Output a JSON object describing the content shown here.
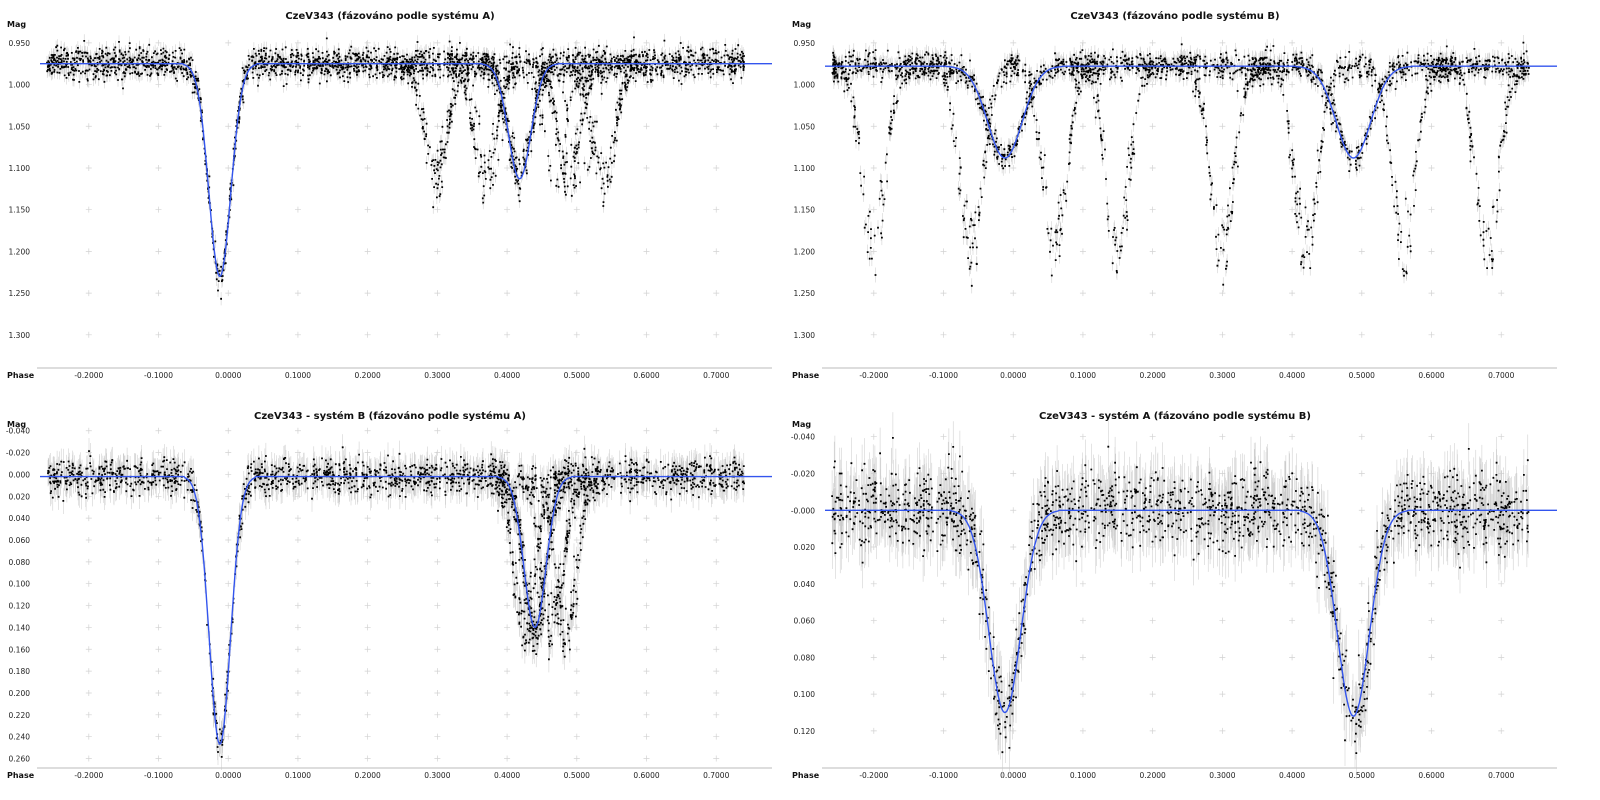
{
  "chart_data": [
    {
      "type": "scatter",
      "title": "CzeV343 (fázováno podle systému A)",
      "ylabel": "Mag",
      "xlabel": "Phase",
      "xlim": [
        -0.27,
        0.78
      ],
      "ylim": [
        1.335,
        0.925
      ],
      "y_reversed": true,
      "grid": "plus-markers",
      "x_ticks": [
        "-0.2000",
        "-0.1000",
        "0.0000",
        "0.1000",
        "0.2000",
        "0.3000",
        "0.4000",
        "0.5000",
        "0.6000",
        "0.7000"
      ],
      "x_tick_values": [
        -0.2,
        -0.1,
        0.0,
        0.1,
        0.2,
        0.3,
        0.4,
        0.5,
        0.6,
        0.7
      ],
      "y_ticks": [
        "0.950",
        "1.000",
        "1.050",
        "1.100",
        "1.150",
        "1.200",
        "1.250",
        "1.300"
      ],
      "y_tick_values": [
        0.95,
        1.0,
        1.05,
        1.1,
        1.15,
        1.2,
        1.25,
        1.3
      ],
      "data_x_range": [
        -0.26,
        0.74
      ],
      "model": {
        "color": "#3355ee",
        "x_range": [
          -0.27,
          0.78
        ],
        "base": 0.975,
        "dips": [
          {
            "center": -0.012,
            "depth": 0.255,
            "width": 0.033
          },
          {
            "center": 0.418,
            "depth": 0.138,
            "width": 0.034
          }
        ]
      },
      "observations": {
        "points_per_track": 260,
        "tracks": [
          {
            "offset": 0.0,
            "weight": 5
          },
          {
            "offset": 0.05,
            "weight": 2
          },
          {
            "offset": -0.04,
            "weight": 1
          },
          {
            "offset": 0.09,
            "weight": 1
          }
        ],
        "secondary_offsets": [
          0.0,
          0.07,
          -0.05,
          0.12,
          -0.12
        ],
        "noise": 0.009,
        "error_bar": 0.008
      }
    },
    {
      "type": "scatter",
      "title": "CzeV343 (fázováno podle systému B)",
      "ylabel": "Mag",
      "xlabel": "Phase",
      "xlim": [
        -0.27,
        0.78
      ],
      "ylim": [
        1.335,
        0.925
      ],
      "y_reversed": true,
      "grid": "plus-markers",
      "x_ticks": [
        "-0.2000",
        "-0.1000",
        "0.0000",
        "0.1000",
        "0.2000",
        "0.3000",
        "0.4000",
        "0.5000",
        "0.6000",
        "0.7000"
      ],
      "x_tick_values": [
        -0.2,
        -0.1,
        0.0,
        0.1,
        0.2,
        0.3,
        0.4,
        0.5,
        0.6,
        0.7
      ],
      "y_ticks": [
        "0.950",
        "1.000",
        "1.050",
        "1.100",
        "1.150",
        "1.200",
        "1.250",
        "1.300"
      ],
      "y_tick_values": [
        0.95,
        1.0,
        1.05,
        1.1,
        1.15,
        1.2,
        1.25,
        1.3
      ],
      "data_x_range": [
        -0.26,
        0.74
      ],
      "model": {
        "color": "#3355ee",
        "x_range": [
          -0.27,
          0.78
        ],
        "base": 0.978,
        "dips": [
          {
            "center": -0.012,
            "depth": 0.11,
            "width": 0.052
          },
          {
            "center": 0.488,
            "depth": 0.11,
            "width": 0.052
          }
        ]
      },
      "observations": {
        "points_per_track": 240,
        "tracks": [
          {
            "offset": 0.0,
            "weight": 6
          }
        ],
        "scatter_dips": [
          -0.2,
          -0.06,
          0.06,
          0.15,
          0.3,
          0.42,
          0.56,
          0.68
        ],
        "scatter_depth": 0.25,
        "noise": 0.008,
        "error_bar": 0.009
      }
    },
    {
      "type": "scatter",
      "title": "CzeV343 - systém B (fázováno podle systému A)",
      "ylabel": "Mag",
      "xlabel": "Phase",
      "xlim": [
        -0.27,
        0.78
      ],
      "ylim": [
        0.265,
        -0.048
      ],
      "y_reversed": true,
      "grid": "plus-markers",
      "x_ticks": [
        "-0.2000",
        "-0.1000",
        "0.0000",
        "0.1000",
        "0.2000",
        "0.3000",
        "0.4000",
        "0.5000",
        "0.6000",
        "0.7000"
      ],
      "x_tick_values": [
        -0.2,
        -0.1,
        0.0,
        0.1,
        0.2,
        0.3,
        0.4,
        0.5,
        0.6,
        0.7
      ],
      "y_ticks": [
        "-0.040",
        "-0.020",
        "0.000",
        "0.020",
        "0.040",
        "0.060",
        "0.080",
        "0.100",
        "0.120",
        "0.140",
        "0.160",
        "0.180",
        "0.200",
        "0.220",
        "0.240",
        "0.260"
      ],
      "y_tick_values": [
        -0.04,
        -0.02,
        0.0,
        0.02,
        0.04,
        0.06,
        0.08,
        0.1,
        0.12,
        0.14,
        0.16,
        0.18,
        0.2,
        0.22,
        0.24,
        0.26
      ],
      "data_x_range": [
        -0.26,
        0.74
      ],
      "model": {
        "color": "#3355ee",
        "x_range": [
          -0.27,
          0.78
        ],
        "base": 0.002,
        "dips": [
          {
            "center": -0.012,
            "depth": 0.245,
            "width": 0.032
          },
          {
            "center": 0.44,
            "depth": 0.138,
            "width": 0.033
          }
        ]
      },
      "observations": {
        "points_per_track": 280,
        "tracks": [
          {
            "offset": 0.0,
            "weight": 6
          }
        ],
        "secondary_offsets": [
          0.0,
          0.025,
          -0.015,
          0.045
        ],
        "noise": 0.008,
        "error_bar": 0.012
      }
    },
    {
      "type": "scatter",
      "title": "CzeV343 - systém A (fázováno podle systému B)",
      "ylabel": "Mag",
      "xlabel": "Phase",
      "xlim": [
        -0.27,
        0.78
      ],
      "ylim": [
        0.138,
        -0.048
      ],
      "y_reversed": true,
      "grid": "plus-markers",
      "x_ticks": [
        "-0.2000",
        "-0.1000",
        "0.0000",
        "0.1000",
        "0.2000",
        "0.3000",
        "0.4000",
        "0.5000",
        "0.6000",
        "0.7000"
      ],
      "x_tick_values": [
        -0.2,
        -0.1,
        0.0,
        0.1,
        0.2,
        0.3,
        0.4,
        0.5,
        0.6,
        0.7
      ],
      "y_ticks": [
        "-0.040",
        "-0.020",
        "-0.000",
        "0.020",
        "0.040",
        "0.060",
        "0.080",
        "0.100",
        "0.120"
      ],
      "y_tick_values": [
        -0.04,
        -0.02,
        0.0,
        0.02,
        0.04,
        0.06,
        0.08,
        0.1,
        0.12
      ],
      "data_x_range": [
        -0.26,
        0.74
      ],
      "model": {
        "color": "#3355ee",
        "x_range": [
          -0.27,
          0.78
        ],
        "base": 0.0,
        "dips": [
          {
            "center": -0.012,
            "depth": 0.11,
            "width": 0.048
          },
          {
            "center": 0.488,
            "depth": 0.112,
            "width": 0.048
          }
        ]
      },
      "observations": {
        "points_per_track": 300,
        "tracks": [
          {
            "offset": 0.0,
            "weight": 6
          }
        ],
        "noise": 0.011,
        "error_bar": 0.014
      }
    }
  ]
}
